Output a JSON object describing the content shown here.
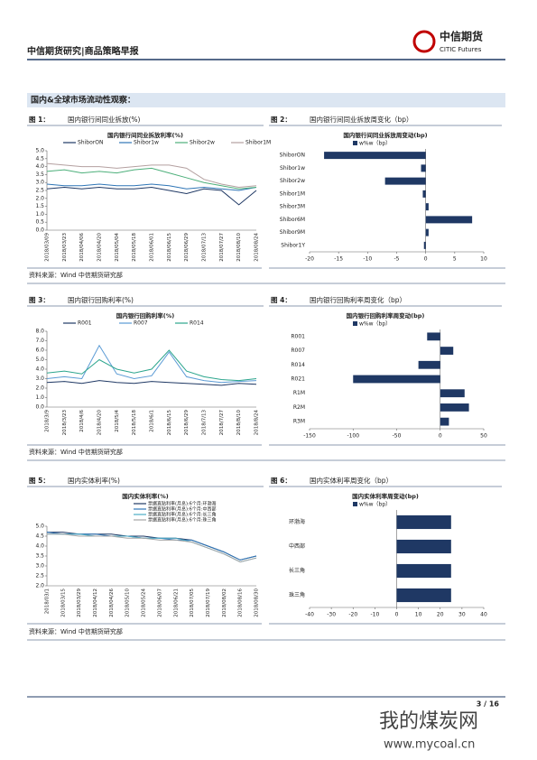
{
  "header": {
    "title": "中信期货研究|商品策略早报",
    "logo_cn": "中信期货",
    "logo_en": "CITIC Futures"
  },
  "section_title": "国内&全球市场流动性观察：",
  "chart_data": [
    {
      "type": "line",
      "figure_label": "图 1：",
      "figure_title": "国内银行间同业拆放(%)",
      "title": "国内银行间同业拆放利率(%)",
      "categories": [
        "2018/03/09",
        "2018/03/23",
        "2018/04/06",
        "2018/04/20",
        "2018/05/04",
        "2018/05/18",
        "2018/06/01",
        "2018/06/15",
        "2018/06/29",
        "2018/07/13",
        "2018/07/27",
        "2018/08/10",
        "2018/08/24"
      ],
      "series": [
        {
          "name": "ShiborON",
          "color": "#1f3864",
          "values": [
            2.6,
            2.7,
            2.6,
            2.7,
            2.6,
            2.6,
            2.7,
            2.5,
            2.3,
            2.6,
            2.5,
            1.6,
            2.5
          ]
        },
        {
          "name": "Shibor1w",
          "color": "#2e75b6",
          "values": [
            2.9,
            2.8,
            2.8,
            2.9,
            2.8,
            2.8,
            2.9,
            2.8,
            2.6,
            2.7,
            2.6,
            2.5,
            2.7
          ]
        },
        {
          "name": "Shibor2w",
          "color": "#4caf7a",
          "values": [
            3.7,
            3.8,
            3.6,
            3.7,
            3.6,
            3.8,
            3.9,
            3.6,
            3.3,
            3.0,
            2.8,
            2.6,
            2.7
          ]
        },
        {
          "name": "Shibor1M",
          "color": "#b4a0a0",
          "values": [
            4.2,
            4.1,
            4.0,
            4.0,
            3.9,
            4.0,
            4.1,
            4.1,
            3.9,
            3.2,
            2.9,
            2.7,
            2.8
          ]
        }
      ],
      "ylim": [
        0,
        5
      ],
      "yticks": [
        {
          "value": 0,
          "label": "0.0"
        },
        {
          "value": 0.5,
          "label": "0.5"
        },
        {
          "value": 1,
          "label": "1.0"
        },
        {
          "value": 1.5,
          "label": "1.5"
        },
        {
          "value": 2,
          "label": "2.0"
        },
        {
          "value": 2.5,
          "label": "2.5"
        },
        {
          "value": 3,
          "label": "3.0"
        },
        {
          "value": 3.5,
          "label": "3.5"
        },
        {
          "value": 4,
          "label": "4.0"
        },
        {
          "value": 4.5,
          "label": "4.5"
        },
        {
          "value": 5,
          "label": "5.0"
        }
      ],
      "legend": "top"
    },
    {
      "type": "barh",
      "figure_label": "图 2：",
      "figure_title": "国内银行间同业拆放周变化（bp）",
      "title": "国内银行间同业拆放周变动(bp)",
      "categories": [
        "ShiborON",
        "Shibor1w",
        "Shibor2w",
        "Shibor1M",
        "Shibor3M",
        "Shibor6M",
        "Shibor9M",
        "Shibor1Y"
      ],
      "series": [
        {
          "name": "w%w（bp）",
          "color": "#1f3864",
          "values": [
            -17.5,
            -0.8,
            -7,
            -0.5,
            0.5,
            8,
            0.5,
            -0.3
          ]
        }
      ],
      "xlim": [
        -20,
        10
      ],
      "xticks": [
        -20,
        -15,
        -10,
        -5,
        0,
        5,
        10
      ]
    },
    {
      "type": "line",
      "figure_label": "图 3：",
      "figure_title": "国内银行回购利率(%)",
      "title": "国内银行回购利率(%)",
      "categories": [
        "2018/3/9",
        "2018/3/23",
        "2018/4/6",
        "2018/4/20",
        "2018/5/4",
        "2018/5/18",
        "2018/6/1",
        "2018/6/15",
        "2018/6/29",
        "2018/7/13",
        "2018/7/27",
        "2018/8/10",
        "2018/8/24"
      ],
      "series": [
        {
          "name": "R001",
          "color": "#1f3864",
          "values": [
            2.6,
            2.7,
            2.5,
            2.8,
            2.6,
            2.5,
            2.7,
            2.6,
            2.5,
            2.4,
            2.3,
            2.5,
            2.4
          ]
        },
        {
          "name": "R007",
          "color": "#5b9bd5",
          "values": [
            3.0,
            3.2,
            3.0,
            6.5,
            3.5,
            3.0,
            3.3,
            5.8,
            3.2,
            2.8,
            2.6,
            2.7,
            2.8
          ]
        },
        {
          "name": "R014",
          "color": "#2ca58d",
          "values": [
            3.6,
            3.8,
            3.5,
            5.0,
            4.0,
            3.6,
            4.0,
            6.0,
            3.8,
            3.2,
            2.9,
            2.8,
            3.0
          ]
        }
      ],
      "ylim": [
        0,
        8
      ],
      "yticks": [
        {
          "value": 0,
          "label": "0.0"
        },
        {
          "value": 1,
          "label": "1.0"
        },
        {
          "value": 2,
          "label": "2.0"
        },
        {
          "value": 3,
          "label": "3.0"
        },
        {
          "value": 4,
          "label": "4.0"
        },
        {
          "value": 5,
          "label": "5.0"
        },
        {
          "value": 6,
          "label": "6.0"
        },
        {
          "value": 7,
          "label": "7.0"
        },
        {
          "value": 8,
          "label": "8.0"
        }
      ],
      "legend": "top"
    },
    {
      "type": "barh",
      "figure_label": "图 4：",
      "figure_title": "国内银行回购利率周变化（bp）",
      "title": "国内银行回购利率周变动(bp)",
      "categories": [
        "R001",
        "R007",
        "R014",
        "R021",
        "R1M",
        "R2M",
        "R3M"
      ],
      "series": [
        {
          "name": "w%w（bp）",
          "color": "#1f3864",
          "values": [
            -15,
            15,
            -25,
            -100,
            28,
            33,
            10
          ]
        }
      ],
      "xlim": [
        -150,
        50
      ],
      "xticks": [
        -150,
        -100,
        -50,
        0,
        50
      ]
    },
    {
      "type": "line",
      "figure_label": "图 5：",
      "figure_title": "国内实体利率(%)",
      "title": "国内实体利率(%)",
      "categories": [
        "2018/03/1",
        "2018/03/15",
        "2018/03/29",
        "2018/04/12",
        "2018/04/26",
        "2018/05/10",
        "2018/05/24",
        "2018/06/07",
        "2018/06/21",
        "2018/07/05",
        "2018/07/19",
        "2018/08/02",
        "2018/08/16",
        "2018/08/30"
      ],
      "series": [
        {
          "name": "票据直贴利率(月息):6个月:环渤海",
          "color": "#1f3864",
          "values": [
            4.7,
            4.7,
            4.6,
            4.6,
            4.6,
            4.5,
            4.5,
            4.4,
            4.4,
            4.3,
            4.0,
            3.7,
            3.3,
            3.5
          ]
        },
        {
          "name": "票据直贴利率(月息):6个月:中西部",
          "color": "#2e75b6",
          "values": [
            4.7,
            4.6,
            4.6,
            4.6,
            4.5,
            4.5,
            4.4,
            4.4,
            4.3,
            4.3,
            4.0,
            3.7,
            3.3,
            3.5
          ]
        },
        {
          "name": "票据直贴利率(月息):6个月:长三角",
          "color": "#4bacc6",
          "values": [
            4.6,
            4.6,
            4.6,
            4.5,
            4.5,
            4.5,
            4.4,
            4.4,
            4.4,
            4.2,
            3.9,
            3.6,
            3.2,
            3.4
          ]
        },
        {
          "name": "票据直贴利率(月息):6个月:珠三角",
          "color": "#a5a5a5",
          "values": [
            4.6,
            4.6,
            4.5,
            4.5,
            4.5,
            4.4,
            4.4,
            4.3,
            4.3,
            4.2,
            3.9,
            3.6,
            3.2,
            3.4
          ]
        }
      ],
      "ylim": [
        2,
        5
      ],
      "yticks": [
        {
          "value": 2,
          "label": "2.0"
        },
        {
          "value": 2.5,
          "label": "2.5"
        },
        {
          "value": 3,
          "label": "3.0"
        },
        {
          "value": 3.5,
          "label": "3.5"
        },
        {
          "value": 4,
          "label": "4.0"
        },
        {
          "value": 4.5,
          "label": "4.5"
        },
        {
          "value": 5,
          "label": "5.0"
        }
      ],
      "legend": "stacked"
    },
    {
      "type": "barh",
      "figure_label": "图 6：",
      "figure_title": "国内实体利率周变化（bp）",
      "title": "国内实体利率周变动(bp)",
      "categories": [
        "环渤海",
        "中西部",
        "长三角",
        "珠三角"
      ],
      "series": [
        {
          "name": "w%w（bp）",
          "color": "#1f3864",
          "values": [
            25,
            25,
            25,
            25
          ]
        }
      ],
      "xlim": [
        -40,
        40
      ],
      "xticks": [
        -40,
        -30,
        -20,
        -10,
        0,
        10,
        20,
        30,
        40
      ]
    }
  ],
  "sources": [
    "资料来源：Wind  中信期货研究部",
    "资料来源：Wind  中信期货研究部",
    "资料来源：Wind  中信期货研究部"
  ],
  "footer": {
    "page": "3 / 16"
  },
  "watermark": {
    "name": "我的煤炭网",
    "url": "www.mycoal.cn"
  }
}
